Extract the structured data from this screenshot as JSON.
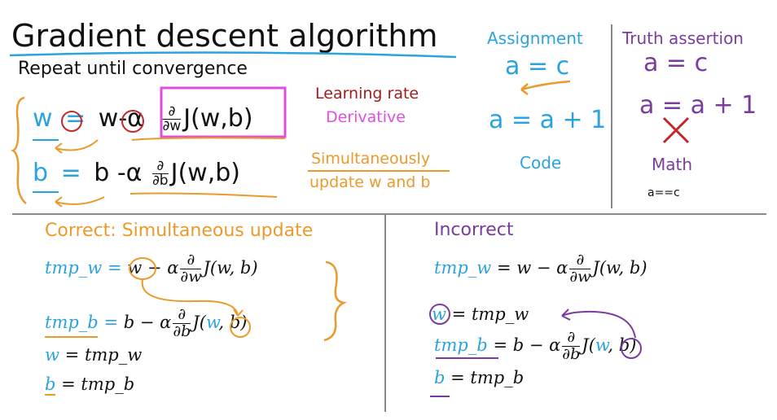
{
  "title": "Gradient descent algorithm",
  "subtitle": "Repeat until convergence",
  "update_rules": {
    "w_lhs": "w",
    "eq": "=",
    "w_rhs": "w-",
    "alpha": "α",
    "d": "∂",
    "dw": "∂w",
    "db": "∂b",
    "J": "J(w,b)",
    "b_lhs": "b",
    "b_rhs": "b -α"
  },
  "annotations": {
    "learning_rate": "Learning rate",
    "derivative": "Derivative",
    "simultaneously": "Simultaneously",
    "update_w_and_b": "update w and b"
  },
  "assignment": {
    "heading": "Assignment",
    "ex1": "a = c",
    "ex2": "a = a + 1",
    "label": "Code"
  },
  "truth": {
    "heading": "Truth assertion",
    "ex1": "a = c",
    "ex2": "a = a + 1",
    "label": "Math",
    "code": "a==c"
  },
  "correct": {
    "heading": "Correct: Simultaneous update",
    "l1_lhs": "tmp_w",
    "l1_eq": "=",
    "l1_w": "w",
    "l1_rest": "− α",
    "d": "∂",
    "dw": "∂w",
    "db": "∂b",
    "J": "J(w, b)",
    "l2_lhs": "tmp_b",
    "l2_eq": "=",
    "l2_rest": "b − α",
    "l2_j1": "J(",
    "l2_w": "w",
    "l2_j2": ", b)",
    "l3_lhs": "w",
    "l3_rhs": "= tmp_w",
    "l4_lhs": "b",
    "l4_rhs": "= tmp_b"
  },
  "incorrect": {
    "heading": "Incorrect",
    "l1_lhs": "tmp_w",
    "l1_rest": "= w − α",
    "d": "∂",
    "dw": "∂w",
    "db": "∂b",
    "J": "J(w, b)",
    "l2_lhs": "w",
    "l2_rhs": "= tmp_w",
    "l3_lhs": "tmp_b",
    "l3_rest": "= b − α",
    "l3_j1": "J(",
    "l3_w": "w",
    "l3_j2": ", b)",
    "l4_lhs": "b",
    "l4_rhs": "= tmp_b"
  },
  "colors": {
    "blue": "#2aa3df",
    "orange": "#eb9a2c",
    "purple": "#7a3c9e",
    "red": "#a31c1c",
    "magenta": "#e04ee0"
  }
}
